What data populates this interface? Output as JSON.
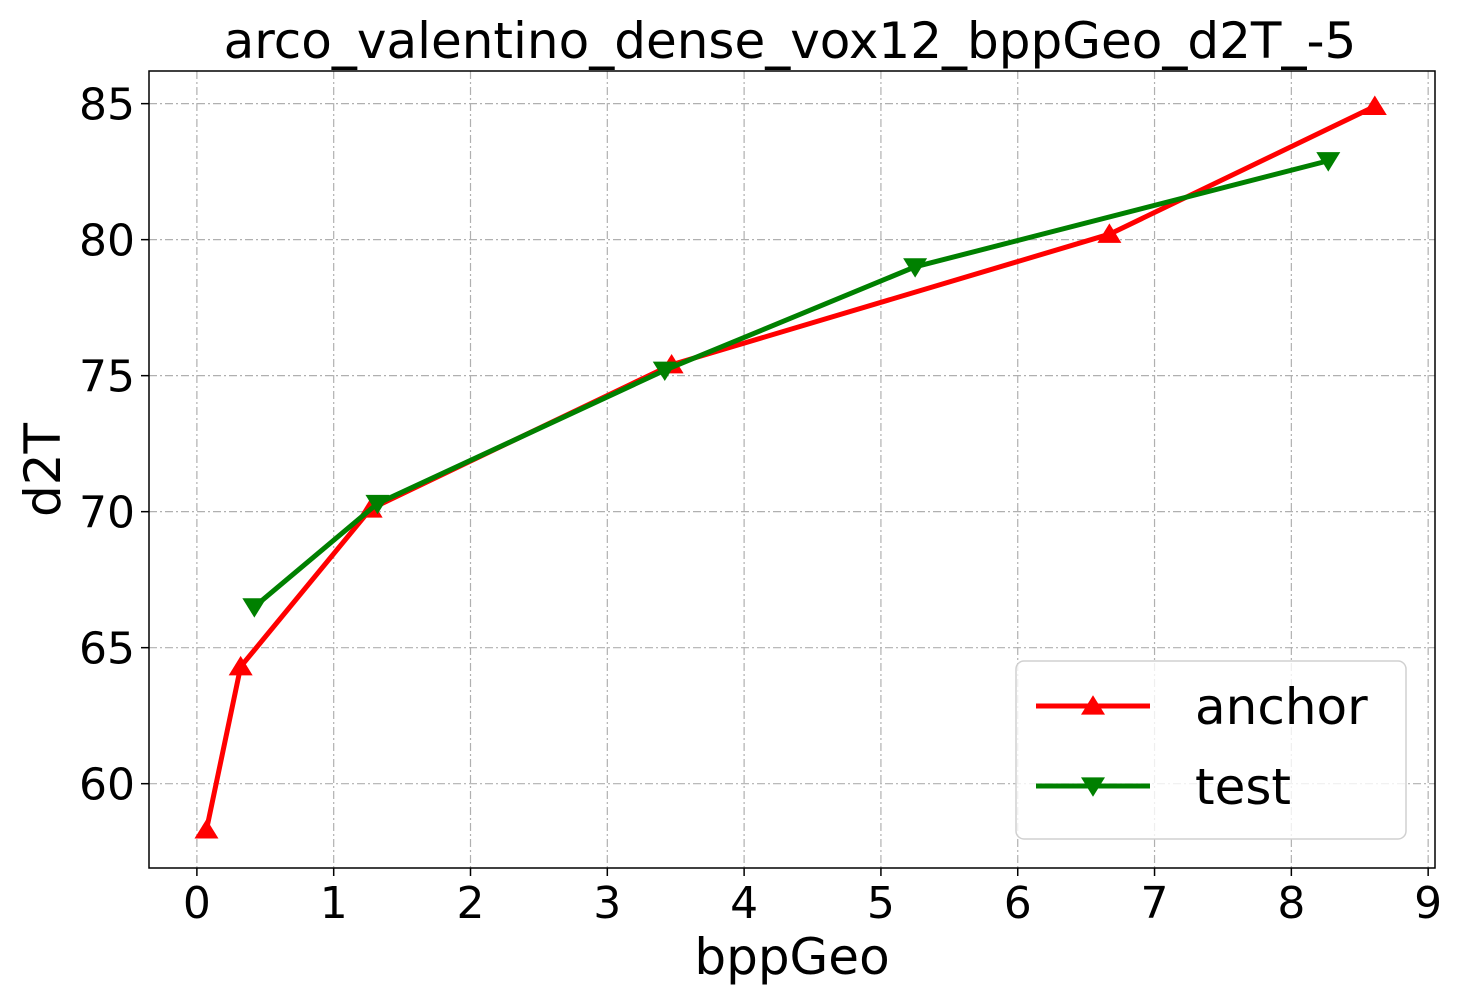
{
  "chart_data": {
    "type": "line",
    "title": "arco_valentino_dense_vox12_bppGeo_d2T_-5",
    "xlabel": "bppGeo",
    "ylabel": "d2T",
    "xlim": [
      -0.35,
      9.05
    ],
    "ylim": [
      56.9,
      86.2
    ],
    "xticks": [
      "0",
      "1",
      "2",
      "3",
      "4",
      "5",
      "6",
      "7",
      "8",
      "9"
    ],
    "yticks": [
      "60",
      "65",
      "70",
      "75",
      "80",
      "85"
    ],
    "grid": true,
    "legend_position": "lower-right",
    "series": [
      {
        "name": "anchor",
        "color": "#ff0000",
        "marker": "triangle-up",
        "x": [
          0.07,
          0.32,
          1.27,
          3.47,
          6.67,
          8.61
        ],
        "y": [
          58.3,
          64.3,
          70.1,
          75.4,
          80.2,
          84.9
        ]
      },
      {
        "name": "test",
        "color": "#008000",
        "marker": "triangle-down",
        "x": [
          0.42,
          1.32,
          3.42,
          5.25,
          8.27
        ],
        "y": [
          66.5,
          70.3,
          75.2,
          79.0,
          82.9
        ]
      }
    ]
  }
}
